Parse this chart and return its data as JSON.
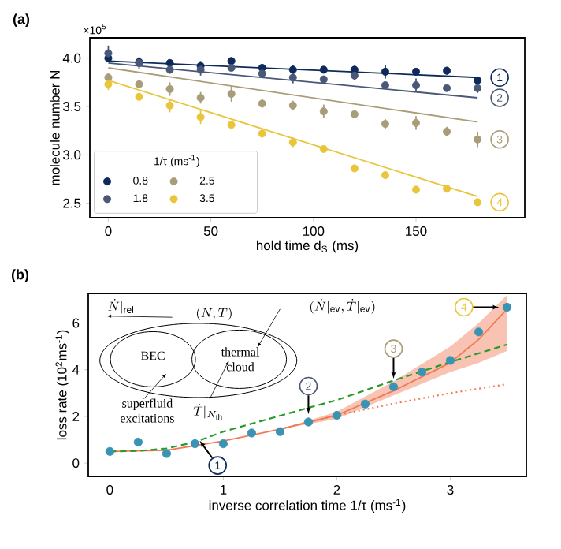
{
  "chart_data": [
    {
      "type": "scatter",
      "title": "(a)",
      "xlabel": "hold time d$_{S}$ (ms)",
      "ylabel": "molecule number N",
      "legend_title": "1/τ (ms$^{-1}$)",
      "legend": "bottom left",
      "xlim": [
        -9,
        203
      ],
      "ylim": [
        2.35,
        4.21
      ],
      "xticks": [
        0,
        50,
        100,
        150
      ],
      "yticks": [
        2.5,
        {
          "value": 3.0,
          "label": "3.0"
        },
        3.5,
        {
          "value": 4.0,
          "label": "4.0"
        }
      ],
      "x": [
        0,
        15,
        30,
        45,
        60,
        75,
        90,
        105,
        120,
        135,
        150,
        165,
        180
      ],
      "series": [
        {
          "name": "0.8",
          "marker": "circle",
          "color": "#0d2a5a",
          "values": [
            4.0,
            3.96,
            3.95,
            3.92,
            3.97,
            3.9,
            3.88,
            3.88,
            3.88,
            3.86,
            3.86,
            3.87,
            3.77
          ],
          "errors": [
            0.04,
            0.04,
            0.03,
            0.05,
            0.04,
            0.03,
            0.05,
            0.03,
            0.04,
            0.07,
            0.03,
            0.04,
            0.03
          ]
        },
        {
          "name": "1.8",
          "marker": "circle",
          "color": "#4a5878",
          "values": [
            4.05,
            3.95,
            3.88,
            3.88,
            3.9,
            3.84,
            3.8,
            3.78,
            3.82,
            3.72,
            3.72,
            3.69,
            3.69
          ],
          "errors": [
            0.08,
            0.06,
            0.04,
            0.06,
            0.03,
            0.04,
            0.06,
            0.04,
            0.05,
            0.04,
            0.07,
            0.03,
            0.05
          ]
        },
        {
          "name": "2.5",
          "marker": "circle",
          "color": "#a89d78",
          "values": [
            3.8,
            3.73,
            3.68,
            3.59,
            3.63,
            3.53,
            3.51,
            3.45,
            3.42,
            3.32,
            3.33,
            3.24,
            3.16
          ],
          "errors": [
            0.04,
            0.04,
            0.07,
            0.06,
            0.08,
            0.04,
            0.05,
            0.07,
            0.03,
            0.05,
            0.07,
            0.05,
            0.08
          ]
        },
        {
          "name": "3.5",
          "marker": "circle",
          "color": "#e8c53a",
          "values": [
            3.73,
            3.6,
            3.51,
            3.39,
            3.31,
            3.22,
            3.13,
            3.06,
            2.86,
            2.79,
            2.64,
            2.65,
            2.51
          ],
          "errors": [
            0.06,
            0.03,
            0.07,
            0.07,
            0.03,
            0.04,
            0.05,
            0.03,
            0.02,
            0.02,
            0.02,
            0.03,
            0.02
          ]
        },
        {
          "type": "line",
          "marker": "none",
          "color": "#0d2a5a",
          "x": [
            0,
            180
          ],
          "values": [
            3.97,
            3.8
          ]
        },
        {
          "type": "line",
          "marker": "none",
          "color": "#4a5878",
          "x": [
            0,
            180
          ],
          "values": [
            3.95,
            3.59
          ]
        },
        {
          "type": "line",
          "marker": "none",
          "color": "#a89d78",
          "x": [
            0,
            180
          ],
          "values": [
            3.9,
            3.34
          ]
        },
        {
          "type": "line",
          "marker": "none",
          "color": "#e8c53a",
          "x": [
            0,
            180
          ],
          "values": [
            3.77,
            2.57
          ]
        }
      ],
      "annotations": [
        "×10$^{5}$",
        {
          "text": "1",
          "x": 180,
          "y": 3.8
        },
        {
          "text": "2",
          "x": 180,
          "y": 3.59
        },
        {
          "text": "3",
          "x": 180,
          "y": 3.16
        },
        {
          "text": "4",
          "x": 180,
          "y": 2.51
        }
      ]
    },
    {
      "type": "scatter",
      "title": "(b)",
      "xlabel": "inverse correlation time 1/τ (ms$^{-1}$)",
      "ylabel": "loss rate (10$^{2}$ms$^{-1}$)",
      "xlim": [
        -0.19,
        3.67
      ],
      "ylim": [
        -0.57,
        7.27
      ],
      "xticks": [
        0,
        1,
        2,
        3
      ],
      "yticks": [
        0,
        2,
        4,
        6
      ],
      "series": [
        {
          "type": "line",
          "marker": "none",
          "color": "#f07a55",
          "x": [
            0,
            0.5,
            1,
            1.5,
            2,
            2.5,
            3,
            3.25,
            3.5
          ],
          "values": [
            0.5,
            0.55,
            0.95,
            1.45,
            2.05,
            3.1,
            4.3,
            5.3,
            6.6
          ],
          "lower": [
            null,
            null,
            null,
            1.45,
            1.9,
            2.9,
            3.9,
            4.3,
            4.8
          ],
          "upper": [
            null,
            null,
            null,
            1.45,
            2.2,
            3.5,
            5.0,
            6.0,
            7.2
          ]
        },
        {
          "type": "line",
          "marker": "none",
          "color": "#f07a55",
          "line_style": "dotted",
          "x": [
            1.5,
            2,
            2.5,
            3,
            3.5
          ],
          "values": [
            1.45,
            2.05,
            2.55,
            3.0,
            3.38
          ]
        },
        {
          "type": "line",
          "marker": "none",
          "color": "#2a9a2a",
          "line_style": "dashed",
          "x": [
            0,
            0.25,
            0.5,
            0.75,
            1,
            1.5,
            1.75,
            2,
            2.5,
            3,
            3.5
          ],
          "values": [
            0.5,
            0.52,
            0.63,
            0.9,
            1.35,
            2.03,
            2.37,
            2.7,
            3.54,
            4.33,
            5.08
          ]
        },
        {
          "marker": "circle",
          "color": "#3a93b3",
          "x": [
            0,
            0.25,
            0.5,
            0.75,
            1,
            1.25,
            1.5,
            1.75,
            2,
            2.25,
            2.5,
            2.75,
            3,
            3.25,
            3.5
          ],
          "values": [
            0.5,
            0.9,
            0.41,
            0.83,
            0.83,
            1.29,
            1.35,
            1.76,
            2.05,
            2.53,
            3.27,
            3.9,
            4.4,
            5.62,
            6.68
          ]
        }
      ],
      "annotations": [
        "\\dot{N}|_{\\mathrm{rel}}",
        "(N,T)",
        "(\\dot{N}|_{\\mathrm{ev}},\\dot{T}|_{\\mathrm{ev}})",
        "BEC",
        "thermal cloud",
        "superfluid excitations",
        "\\dot{T}|_{N_{\\mathrm{th}}}",
        {
          "text": "1",
          "x": 0.75,
          "y": 0.83
        },
        {
          "text": "2",
          "x": 1.75,
          "y": 1.76
        },
        {
          "text": "3",
          "x": 2.5,
          "y": 3.27
        },
        {
          "text": "4",
          "x": 3.5,
          "y": 6.68
        }
      ]
    }
  ]
}
